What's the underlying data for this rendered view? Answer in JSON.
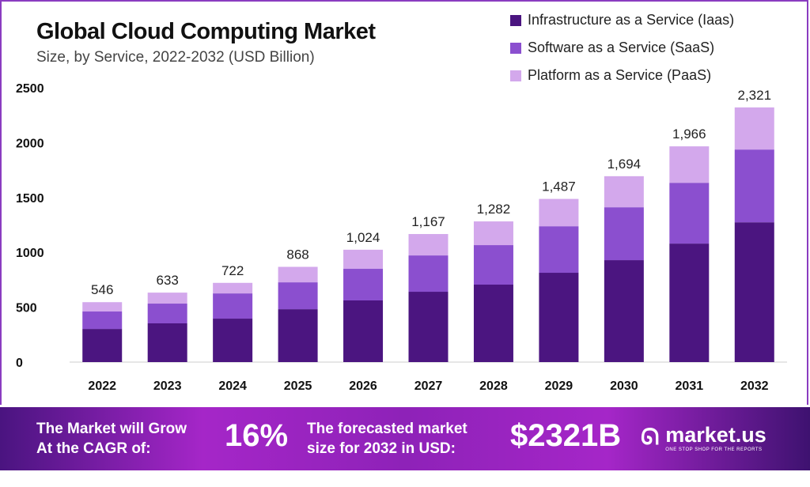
{
  "chart_data": {
    "type": "bar",
    "stacked": true,
    "title": "Global Cloud Computing Market",
    "subtitle": "Size, by Service, 2022-2032 (USD Billion)",
    "categories": [
      "2022",
      "2023",
      "2024",
      "2025",
      "2026",
      "2027",
      "2028",
      "2029",
      "2030",
      "2031",
      "2032"
    ],
    "series": [
      {
        "name": "Infrastructure as a Service (Iaas)",
        "color": "#4b1580",
        "values": [
          302,
          353,
          396,
          482,
          562,
          641,
          706,
          814,
          929,
          1080,
          1274
        ]
      },
      {
        "name": "Software as a Service (SaaS)",
        "color": "#8b4fcf",
        "values": [
          159,
          180,
          230,
          245,
          288,
          331,
          360,
          424,
          482,
          554,
          663
        ]
      },
      {
        "name": "Platform as a Service (PaaS)",
        "color": "#d3a8ec",
        "values": [
          85,
          100,
          96,
          141,
          174,
          195,
          216,
          249,
          283,
          332,
          384
        ]
      }
    ],
    "totals": [
      "546",
      "633",
      "722",
      "868",
      "1,024",
      "1,167",
      "1,282",
      "1,487",
      "1,694",
      "1,966",
      "2,321"
    ],
    "yticks": [
      "0",
      "500",
      "1000",
      "1500",
      "2000",
      "2500"
    ],
    "ylim": [
      0,
      2500
    ],
    "grid": false,
    "legend": "top-right"
  },
  "footer": {
    "cagr_label_1": "The Market will Grow",
    "cagr_label_2": "At the CAGR of:",
    "cagr_value": "16%",
    "forecast_label_1": "The forecasted market",
    "forecast_label_2": "size for 2032 in USD:",
    "forecast_value": "$2321B",
    "logo_text": "market.us",
    "logo_tagline": "ONE STOP SHOP FOR THE REPORTS"
  }
}
